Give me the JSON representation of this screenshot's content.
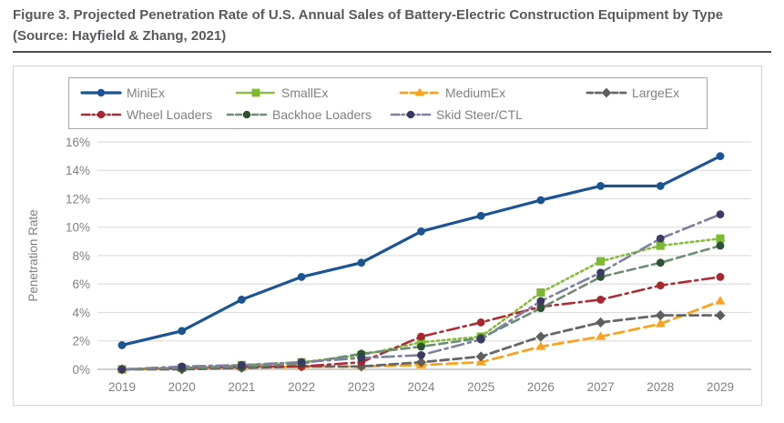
{
  "title": {
    "text": "Figure 3. Projected Penetration Rate of U.S. Annual Sales of Battery-Electric Construction Equipment by Type (Source: Hayfield & Zhang, 2021)"
  },
  "chart_data": {
    "type": "line",
    "title": "Projected Penetration Rate of U.S. Annual Sales of Battery-Electric Construction Equipment by Type",
    "xlabel": "",
    "ylabel": "Penetration Rate",
    "categories": [
      "2019",
      "2020",
      "2021",
      "2022",
      "2023",
      "2024",
      "2025",
      "2026",
      "2027",
      "2028",
      "2029"
    ],
    "ylim": [
      0,
      16
    ],
    "y_tick_step": 2,
    "y_tick_suffix": "%",
    "grid": true,
    "legend_position": "top",
    "legend_rows": [
      4,
      3
    ],
    "series": [
      {
        "name": "MiniEx",
        "color": "#1A5492",
        "marker": "circle",
        "marker_color": "#1A5492",
        "dash": "solid",
        "width": 3.2,
        "values": [
          1.7,
          2.7,
          4.9,
          6.5,
          7.5,
          9.7,
          10.8,
          11.9,
          12.9,
          12.9,
          15.0
        ]
      },
      {
        "name": "SmallEx",
        "color": "#85BD3C",
        "marker": "square",
        "marker_color": "#7CBA2F",
        "dash": "dotted",
        "width": 2.6,
        "values": [
          0.0,
          0.1,
          0.3,
          0.5,
          1.0,
          1.9,
          2.3,
          5.4,
          7.6,
          8.7,
          9.2
        ]
      },
      {
        "name": "MediumEx",
        "color": "#F9A21D",
        "marker": "triangle",
        "marker_color": "#F9A21D",
        "dash": "long-dash",
        "width": 2.8,
        "values": [
          0.0,
          0.1,
          0.1,
          0.2,
          0.2,
          0.3,
          0.5,
          1.6,
          2.3,
          3.2,
          4.8
        ]
      },
      {
        "name": "LargeEx",
        "color": "#666666",
        "marker": "diamond",
        "marker_color": "#5E5E5E",
        "dash": "dash",
        "width": 2.8,
        "values": [
          0.0,
          0.0,
          0.1,
          0.2,
          0.2,
          0.5,
          0.9,
          2.3,
          3.3,
          3.8,
          3.8
        ]
      },
      {
        "name": "Wheel Loaders",
        "color": "#AE2C33",
        "marker": "circle",
        "marker_color": "#A8262D",
        "dash": "dash-dot",
        "width": 2.6,
        "values": [
          0.0,
          0.1,
          0.2,
          0.2,
          0.5,
          2.3,
          3.3,
          4.4,
          4.9,
          5.9,
          6.5
        ]
      },
      {
        "name": "Backhoe Loaders",
        "color": "#6B8D74",
        "marker": "circle",
        "marker_color": "#2D5233",
        "dash": "dash",
        "width": 2.6,
        "values": [
          0.0,
          0.1,
          0.2,
          0.4,
          1.1,
          1.6,
          2.2,
          4.3,
          6.5,
          7.5,
          8.7
        ]
      },
      {
        "name": "Skid Steer/CTL",
        "color": "#7C81A0",
        "marker": "circle",
        "marker_color": "#3A3B63",
        "dash": "dash-dot",
        "width": 2.6,
        "values": [
          0.0,
          0.2,
          0.3,
          0.5,
          0.8,
          1.0,
          2.1,
          4.8,
          6.8,
          9.2,
          10.9
        ]
      }
    ]
  },
  "colors": {
    "title_text": "#58595B",
    "axis_text": "#7F8084",
    "gridline": "#DEDEDE",
    "axis_line": "#BFBFBF",
    "figure_border": "#D2D2D2",
    "legend_border": "#A6A6A6"
  }
}
